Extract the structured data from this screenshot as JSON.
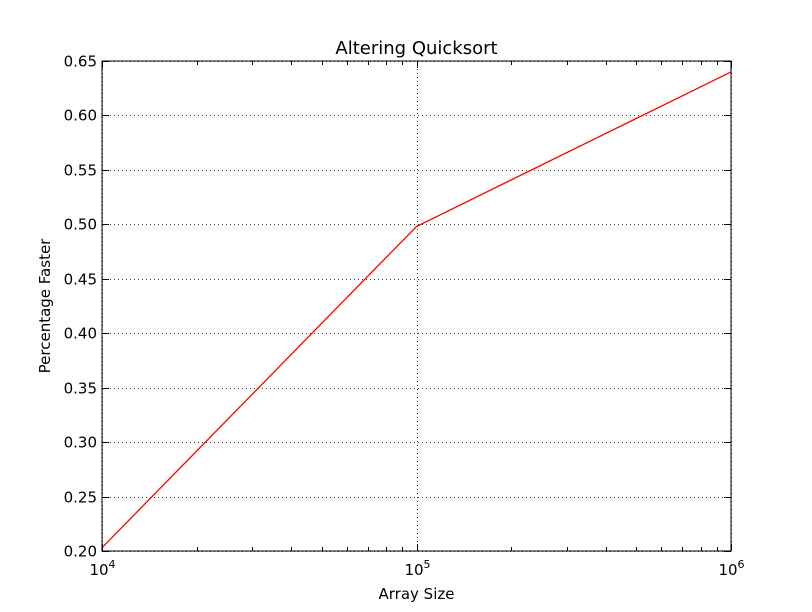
{
  "chart_data": {
    "type": "line",
    "title": "Altering Quicksort",
    "xlabel": "Array Size",
    "ylabel": "Percentage Faster",
    "xscale": "log",
    "xlim": [
      10000,
      1000000
    ],
    "ylim": [
      0.2,
      0.65
    ],
    "x_ticks": [
      {
        "value": 10000,
        "base": "10",
        "exp": "4"
      },
      {
        "value": 100000,
        "base": "10",
        "exp": "5"
      },
      {
        "value": 1000000,
        "base": "10",
        "exp": "6"
      }
    ],
    "y_ticks": [
      {
        "value": 0.2,
        "label": "0.20"
      },
      {
        "value": 0.25,
        "label": "0.25"
      },
      {
        "value": 0.3,
        "label": "0.30"
      },
      {
        "value": 0.35,
        "label": "0.35"
      },
      {
        "value": 0.4,
        "label": "0.40"
      },
      {
        "value": 0.45,
        "label": "0.45"
      },
      {
        "value": 0.5,
        "label": "0.50"
      },
      {
        "value": 0.55,
        "label": "0.55"
      },
      {
        "value": 0.6,
        "label": "0.60"
      },
      {
        "value": 0.65,
        "label": "0.65"
      }
    ],
    "grid": true,
    "series": [
      {
        "color": "#ff0000",
        "x": [
          10000,
          100000,
          1000000
        ],
        "y": [
          0.203,
          0.498,
          0.64
        ]
      }
    ]
  }
}
